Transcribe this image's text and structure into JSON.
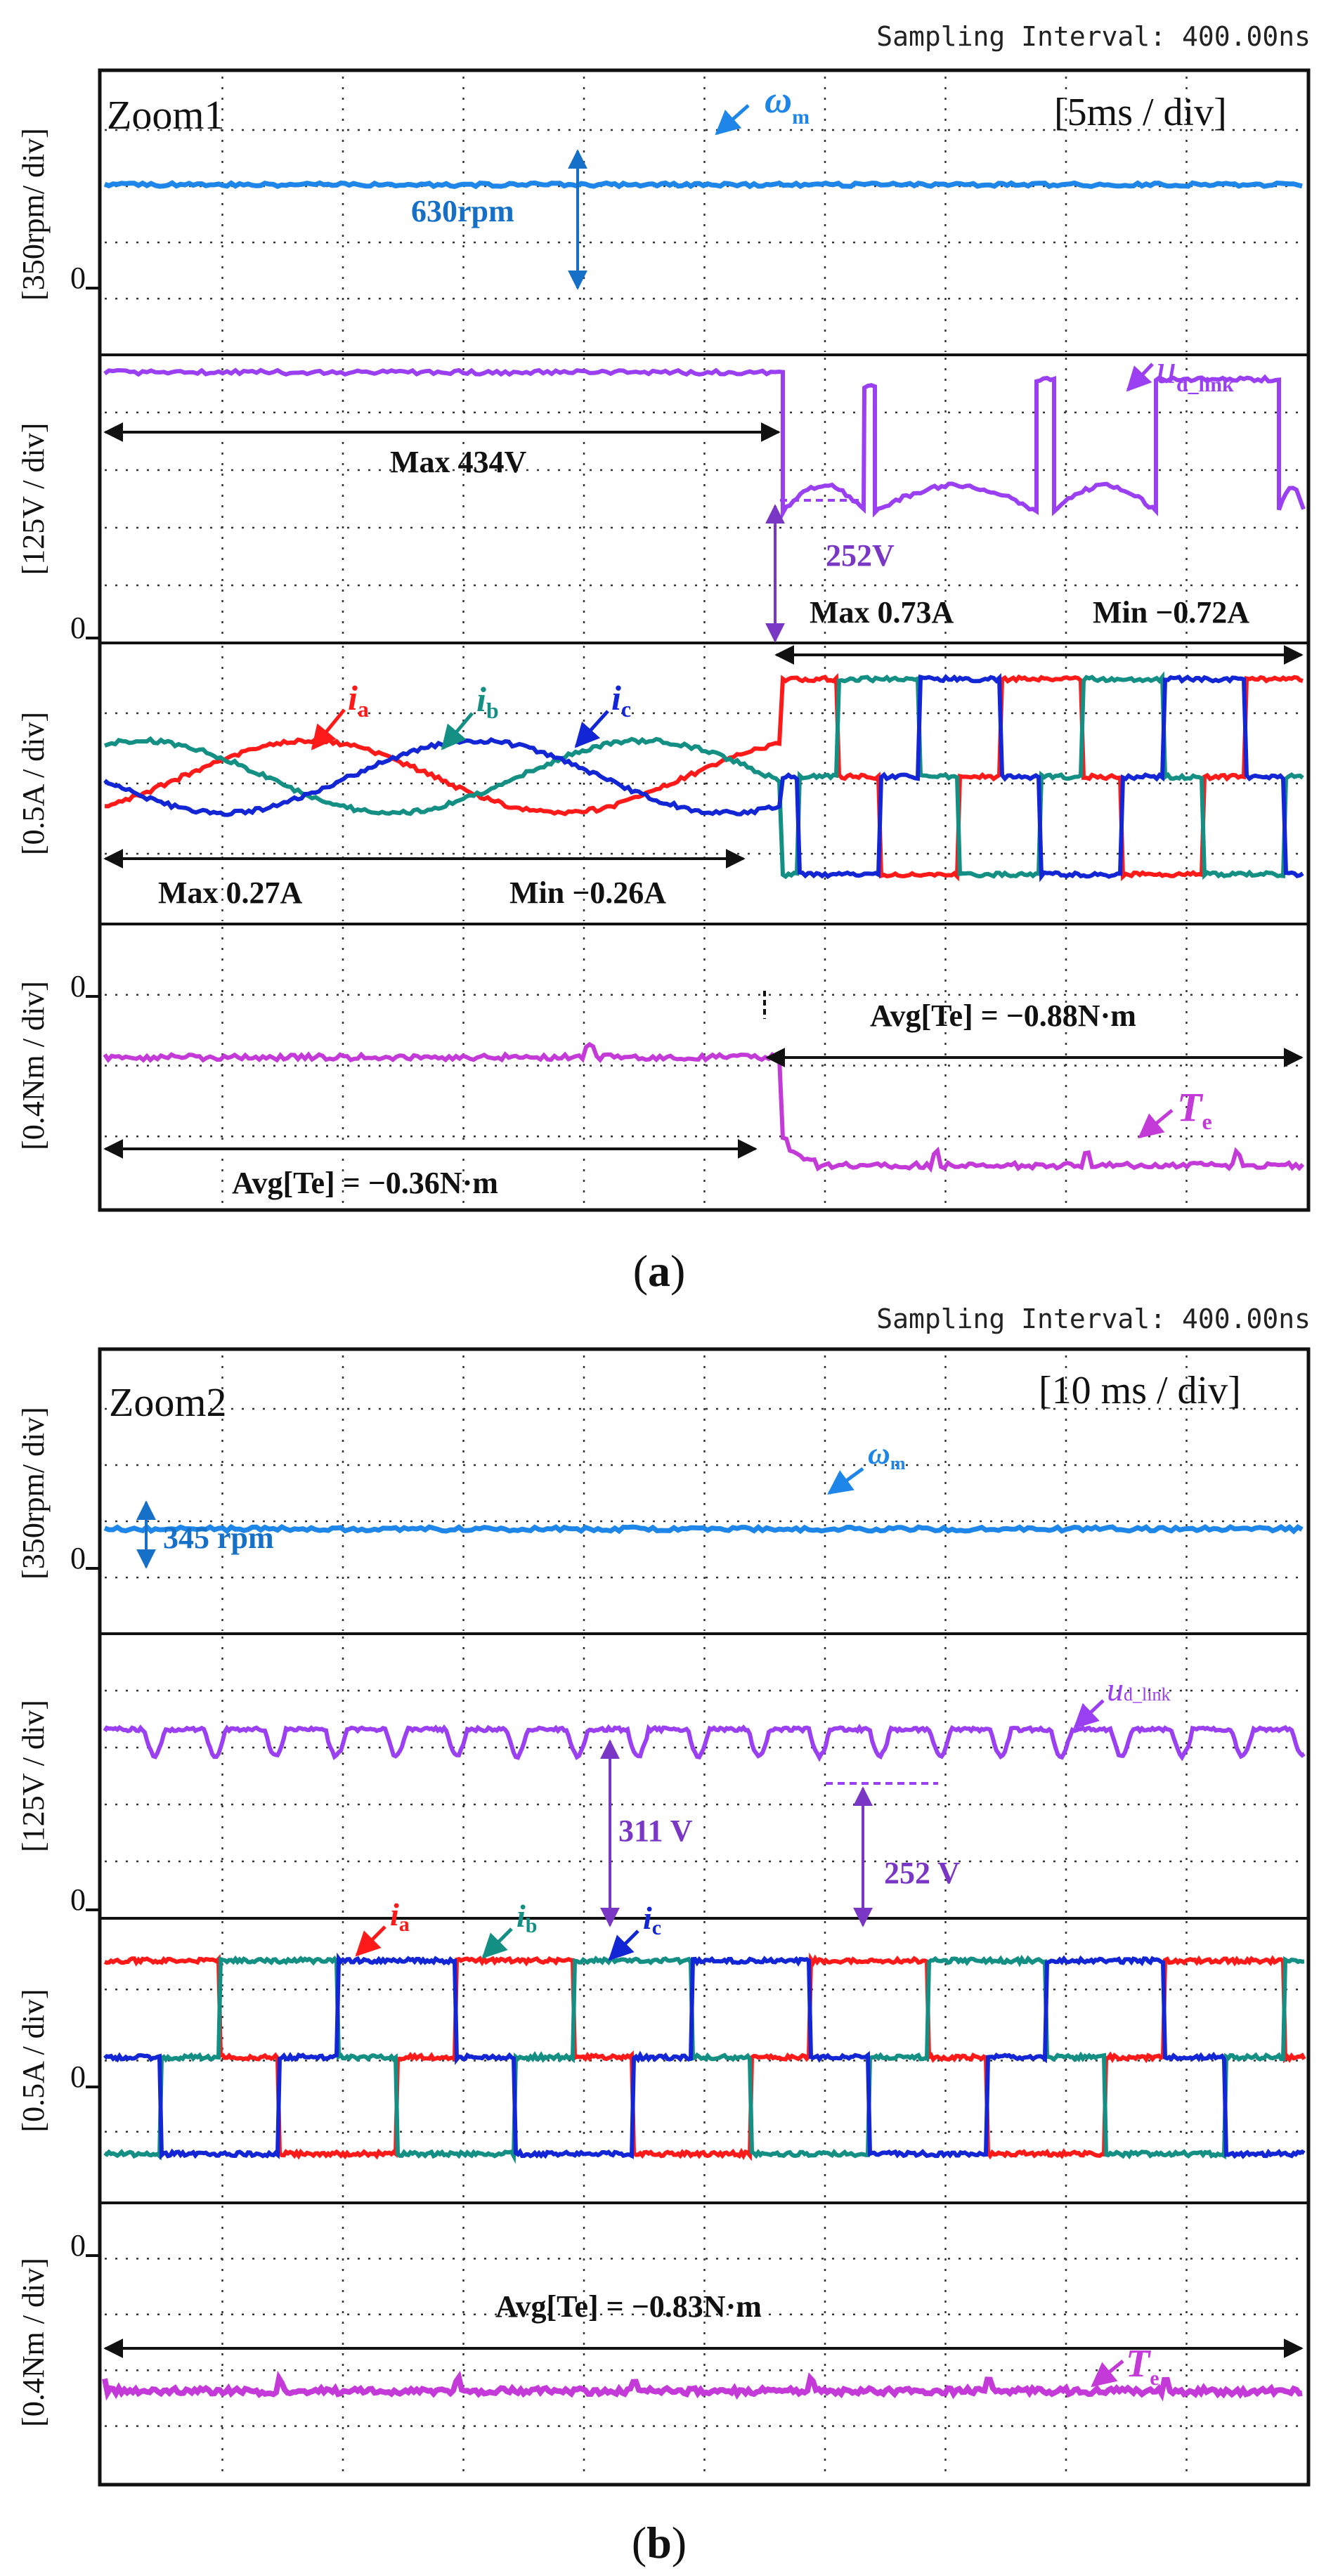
{
  "colors": {
    "speed": "#1e86e8",
    "dclink": "#9a3ff2",
    "ia": "#ff1a1a",
    "ib": "#138f84",
    "ic": "#1326d6",
    "te": "#c43ad8",
    "arrow": "#111111",
    "grid": "#333333",
    "annot_speed": "#1670c7",
    "annot_dclink": "#7a36c4"
  },
  "header": {
    "sampling": "Sampling Interval:  400.00ns"
  },
  "chart_data": [
    {
      "id": "a",
      "type": "line",
      "caption_open": "(",
      "caption_letter": "a",
      "caption_close": ")",
      "zoom_label": "Zoom1",
      "timebase": "[5ms / div]",
      "x_divisions": 10,
      "switch_div": 5.65,
      "panels": [
        {
          "key": "speed",
          "ylabel": "[350rpm/ div]",
          "zero_label": "0",
          "ylim": [
            -0.5,
            3.3
          ],
          "zero_at": 0,
          "series": [
            {
              "name": "ω",
              "sub": "m",
              "color_key": "speed",
              "x": [
                0,
                10
              ],
              "y": [
                1.8,
                1.8
              ]
            }
          ]
        },
        {
          "key": "dclink",
          "ylabel": "[125V / div]",
          "zero_label": "0",
          "ylim": [
            -0.1,
            3.7
          ],
          "zero_at": 0,
          "series": [
            {
              "name": "u",
              "sub": "d_link",
              "color_key": "dclink",
              "x": [
                0,
                5.65,
                5.65,
                10
              ],
              "y": [
                3.47,
                3.47,
                1.55,
                1.55
              ]
            }
          ]
        },
        {
          "key": "current",
          "ylabel": "[0.5A / div]",
          "zero_label": "",
          "ylim": [
            -2.2,
            2.0
          ],
          "zero_at": 0,
          "series": [
            {
              "name": "i",
              "sub": "a",
              "color_key": "ia",
              "peak_before": 0.54,
              "peak_after": 1.46
            },
            {
              "name": "i",
              "sub": "b",
              "color_key": "ib",
              "peak_before": 0.54,
              "peak_after": 1.46
            },
            {
              "name": "i",
              "sub": "c",
              "color_key": "ic",
              "peak_before": 0.54,
              "peak_after": 1.46
            }
          ]
        },
        {
          "key": "torque",
          "ylabel": "[0.4Nm / div]",
          "zero_label": "0",
          "ylim": [
            -2.7,
            0.7
          ],
          "zero_at": 0,
          "series": [
            {
              "name": "T",
              "sub": "e",
              "color_key": "te",
              "x": [
                0,
                5.65,
                5.65,
                10
              ],
              "y": [
                -0.9,
                -0.9,
                -2.2,
                -2.2
              ]
            }
          ]
        }
      ],
      "annotations": {
        "speed_drop": "630rpm",
        "max_dclink": "Max 434V",
        "dclink_drop": "252V",
        "max_after": "Max 0.73A",
        "min_after": "Min −0.72A",
        "max_before": "Max 0.27A",
        "min_before": "Min −0.26A",
        "avg_after": "Avg[Te] = −0.88N·m",
        "avg_before": "Avg[Te] = −0.36N·m"
      }
    },
    {
      "id": "b",
      "type": "line",
      "caption_open": "(",
      "caption_letter": "b",
      "caption_close": ")",
      "zoom_label": "Zoom2",
      "timebase": "[10 ms / div]",
      "x_divisions": 10,
      "panels": [
        {
          "key": "speed",
          "ylabel": "[350rpm/ div]",
          "zero_label": "0",
          "ylim": [
            -0.5,
            3.5
          ],
          "zero_at": 0,
          "series": [
            {
              "name": "ω",
              "sub": "m",
              "color_key": "speed",
              "x": [
                0,
                10
              ],
              "y": [
                0.99,
                0.99
              ]
            }
          ]
        },
        {
          "key": "dclink",
          "ylabel": "[125V / div]",
          "zero_label": "0",
          "ylim": [
            -0.1,
            3.8
          ],
          "zero_at": 0,
          "series": [
            {
              "name": "u",
              "sub": "d_link",
              "color_key": "dclink",
              "x": [
                0,
                10
              ],
              "y": [
                2.49,
                2.49
              ]
            }
          ]
        },
        {
          "key": "current",
          "ylabel": "[0.5A / div]",
          "zero_label": "0",
          "ylim": [
            -2.2,
            2.1
          ],
          "zero_at": 0,
          "series": [
            {
              "name": "i",
              "sub": "a",
              "color_key": "ia",
              "peak": 1.46
            },
            {
              "name": "i",
              "sub": "b",
              "color_key": "ib",
              "peak": 1.46
            },
            {
              "name": "i",
              "sub": "c",
              "color_key": "ic",
              "peak": 1.46
            }
          ]
        },
        {
          "key": "torque",
          "ylabel": "[0.4Nm / div]",
          "zero_label": "0",
          "ylim": [
            -3.4,
            0.6
          ],
          "zero_at": 0,
          "series": [
            {
              "name": "T",
              "sub": "e",
              "color_key": "te",
              "x": [
                0,
                10
              ],
              "y": [
                -2.1,
                -2.1
              ]
            }
          ]
        }
      ],
      "annotations": {
        "speed_level": "345 rpm",
        "dclink_avg_drop": "311 V",
        "dclink_min_drop": "252 V",
        "avg_te": "Avg[Te] = −0.83N·m"
      }
    }
  ]
}
